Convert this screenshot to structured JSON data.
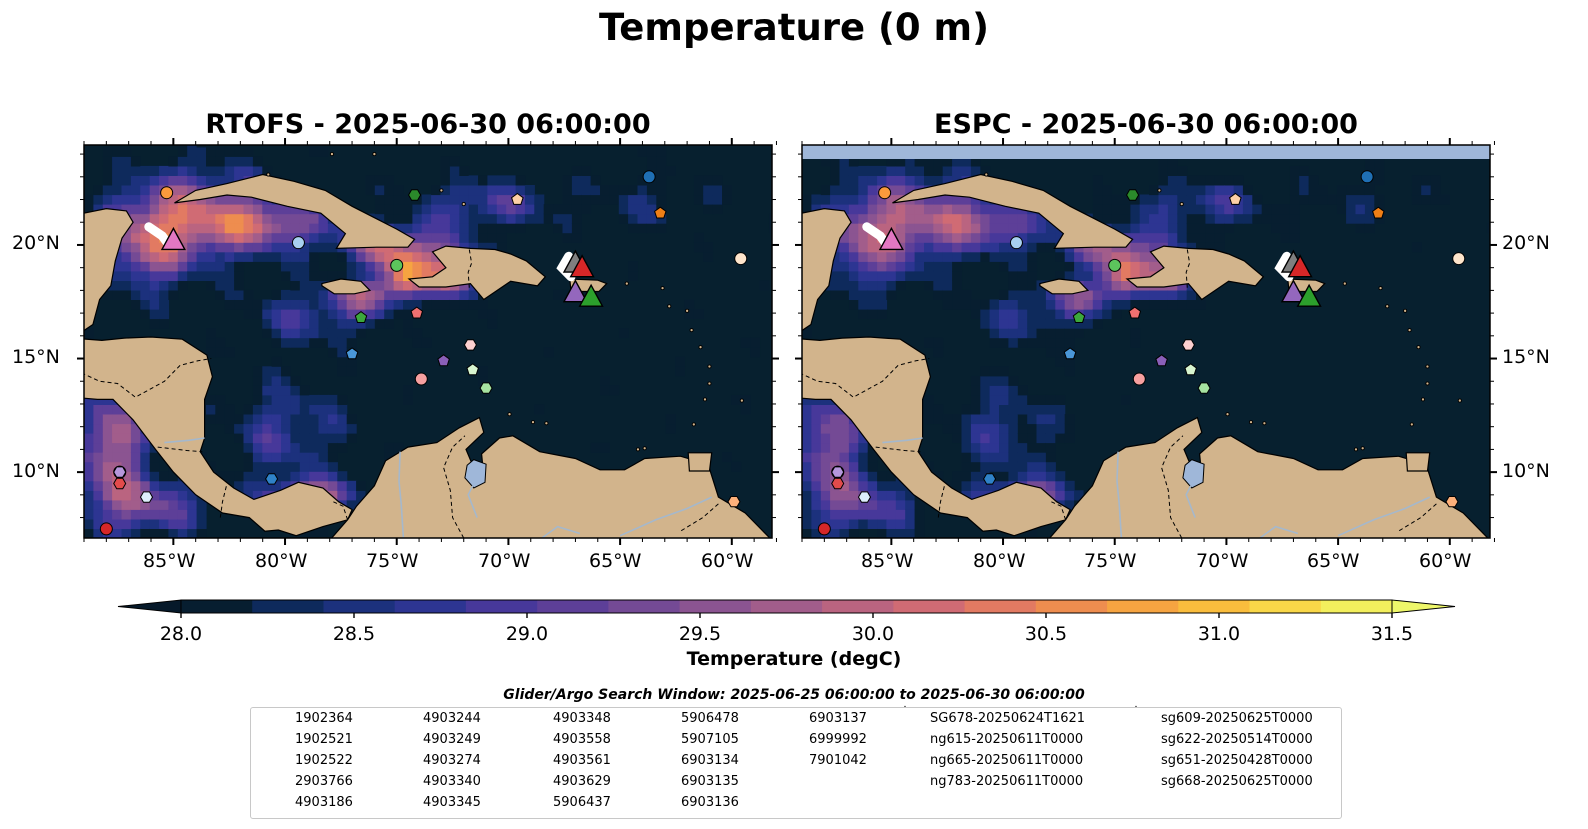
{
  "figure": {
    "suptitle": "Temperature (0 m)",
    "panels": [
      {
        "title": "RTOFS - 2025-06-30 06:00:00",
        "model": "RTOFS"
      },
      {
        "title": "ESPC - 2025-06-30 06:00:00",
        "model": "ESPC"
      }
    ],
    "lat_ticks": [
      "20°N",
      "15°N",
      "10°N"
    ],
    "lon_ticks": [
      "85°W",
      "80°W",
      "75°W",
      "70°W",
      "65°W",
      "60°W"
    ]
  },
  "colorbar": {
    "label": "Temperature (degC)",
    "ticks": [
      "28.0",
      "28.5",
      "29.0",
      "29.5",
      "30.0",
      "30.5",
      "31.0",
      "31.5"
    ],
    "min": 28.0,
    "max": 31.5,
    "extend": "both",
    "colors": [
      "#071e30",
      "#0e2a5c",
      "#1c317d",
      "#2d3592",
      "#47389a",
      "#5d3f98",
      "#744a95",
      "#8b5491",
      "#a25d8b",
      "#ba6480",
      "#d06b74",
      "#e27a62",
      "#ee8d4f",
      "#f6a441",
      "#fabd3d",
      "#f9d748",
      "#f3ef5d"
    ],
    "under_color": "#06192a",
    "over_color": "#eef76a"
  },
  "map_colors": {
    "land": "#d2b48c",
    "ocean": "#07202f",
    "lake": "#9fb7d9",
    "rivers": "#a5b8cc"
  },
  "legend": {
    "title": "Glider/Argo Search Window: 2025-06-25 06:00:00 to 2025-06-30 06:00:00",
    "argo": [
      {
        "id": "1902364",
        "color": "#1f6fb4",
        "shape": "circle"
      },
      {
        "id": "1902521",
        "color": "#2f82c8",
        "shape": "hexagon"
      },
      {
        "id": "1902522",
        "color": "#4a97d8",
        "shape": "pentagon"
      },
      {
        "id": "2903766",
        "color": "#a8d0f0",
        "shape": "circle"
      },
      {
        "id": "4903186",
        "color": "#deeefb",
        "shape": "hexagon"
      },
      {
        "id": "4903244",
        "color": "#f07f16",
        "shape": "pentagon"
      },
      {
        "id": "4903249",
        "color": "#fb9a3c",
        "shape": "circle"
      },
      {
        "id": "4903274",
        "color": "#fdb07a",
        "shape": "hexagon"
      },
      {
        "id": "4903340",
        "color": "#fdd0a6",
        "shape": "pentagon"
      },
      {
        "id": "4903345",
        "color": "#fee5cc",
        "shape": "circle"
      },
      {
        "id": "4903348",
        "color": "#2b8a2b",
        "shape": "hexagon"
      },
      {
        "id": "4903558",
        "color": "#3ca83c",
        "shape": "pentagon"
      },
      {
        "id": "4903561",
        "color": "#5cc45c",
        "shape": "circle"
      },
      {
        "id": "4903629",
        "color": "#a6e3a0",
        "shape": "hexagon"
      },
      {
        "id": "5906437",
        "color": "#d8f5cf",
        "shape": "pentagon"
      },
      {
        "id": "5906478",
        "color": "#d62728",
        "shape": "circle"
      },
      {
        "id": "5907105",
        "color": "#e34b4b",
        "shape": "hexagon"
      },
      {
        "id": "6903134",
        "color": "#f07070",
        "shape": "pentagon"
      },
      {
        "id": "6903135",
        "color": "#f7a0a0",
        "shape": "circle"
      },
      {
        "id": "6903136",
        "color": "#fcd0d0",
        "shape": "hexagon"
      },
      {
        "id": "6903137",
        "color": "#8a5fb8",
        "shape": "pentagon"
      },
      {
        "id": "6999992",
        "color": "#9a70c8",
        "shape": "circle"
      },
      {
        "id": "7901042",
        "color": "#b697dc",
        "shape": "hexagon"
      }
    ],
    "gliders": [
      {
        "id": "SG678-20250624T1621",
        "color": "#1f77b4"
      },
      {
        "id": "ng615-20250611T0000",
        "color": "#ff7f0e"
      },
      {
        "id": "ng665-20250611T0000",
        "color": "#2ca02c"
      },
      {
        "id": "ng783-20250611T0000",
        "color": "#d62728"
      },
      {
        "id": "sg609-20250625T0000",
        "color": "#9467bd"
      },
      {
        "id": "sg622-20250514T0000",
        "color": "#8c564b"
      },
      {
        "id": "sg651-20250428T0000",
        "color": "#e377c2"
      },
      {
        "id": "sg668-20250625T0000",
        "color": "#7f7f7f"
      }
    ]
  },
  "observations": {
    "argo_positions": [
      {
        "id": "1902364",
        "lon": -63.7,
        "lat": 23.0
      },
      {
        "id": "1902521",
        "lon": -80.6,
        "lat": 9.7
      },
      {
        "id": "1902522",
        "lon": -77.0,
        "lat": 15.2
      },
      {
        "id": "2903766",
        "lon": -79.4,
        "lat": 20.1
      },
      {
        "id": "4903186",
        "lon": -86.2,
        "lat": 8.9
      },
      {
        "id": "4903244",
        "lon": -63.2,
        "lat": 21.4
      },
      {
        "id": "4903249",
        "lon": -85.3,
        "lat": 22.3
      },
      {
        "id": "4903274",
        "lon": -59.9,
        "lat": 8.7
      },
      {
        "id": "4903340",
        "lon": -69.6,
        "lat": 22.0
      },
      {
        "id": "4903345",
        "lon": -59.6,
        "lat": 19.4
      },
      {
        "id": "4903348",
        "lon": -74.2,
        "lat": 22.2
      },
      {
        "id": "4903558",
        "lon": -76.6,
        "lat": 16.8
      },
      {
        "id": "4903561",
        "lon": -75.0,
        "lat": 19.1
      },
      {
        "id": "4903629",
        "lon": -71.0,
        "lat": 13.7
      },
      {
        "id": "5906437",
        "lon": -71.6,
        "lat": 14.5
      },
      {
        "id": "5906478",
        "lon": -88.0,
        "lat": 7.5
      },
      {
        "id": "5907105",
        "lon": -87.4,
        "lat": 9.5
      },
      {
        "id": "6903134",
        "lon": -74.1,
        "lat": 17.0
      },
      {
        "id": "6903135",
        "lon": -73.9,
        "lat": 14.1
      },
      {
        "id": "6903136",
        "lon": -71.7,
        "lat": 15.6
      },
      {
        "id": "6903137",
        "lon": -72.9,
        "lat": 14.9
      },
      {
        "id": "6999992",
        "lon": -87.4,
        "lat": 10.0
      },
      {
        "id": "7901042",
        "lon": -87.4,
        "lat": 10.0
      }
    ],
    "glider_positions": [
      {
        "id": "sg651-20250428T0000",
        "lon": -85.0,
        "lat": 20.2
      },
      {
        "id": "sg668-20250625T0000",
        "lon": -67.0,
        "lat": 19.2
      },
      {
        "id": "ng783-20250611T0000",
        "lon": -66.7,
        "lat": 19.0
      },
      {
        "id": "sg609-20250625T0000",
        "lon": -67.0,
        "lat": 17.9
      },
      {
        "id": "ng665-20250611T0000",
        "lon": -66.3,
        "lat": 17.7
      }
    ]
  }
}
